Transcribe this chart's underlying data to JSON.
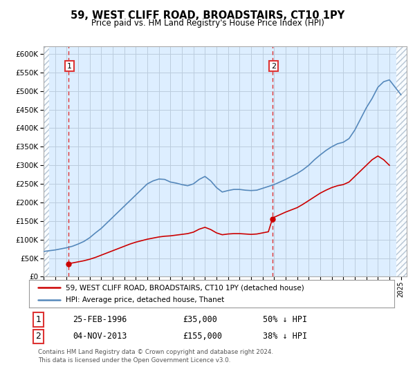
{
  "title": "59, WEST CLIFF ROAD, BROADSTAIRS, CT10 1PY",
  "subtitle": "Price paid vs. HM Land Registry's House Price Index (HPI)",
  "legend_line1": "59, WEST CLIFF ROAD, BROADSTAIRS, CT10 1PY (detached house)",
  "legend_line2": "HPI: Average price, detached house, Thanet",
  "footnote1": "Contains HM Land Registry data © Crown copyright and database right 2024.",
  "footnote2": "This data is licensed under the Open Government Licence v3.0.",
  "transaction1_date": "25-FEB-1996",
  "transaction1_price": "£35,000",
  "transaction1_hpi": "50% ↓ HPI",
  "transaction1_year": 1996.15,
  "transaction1_value": 35000,
  "transaction2_date": "04-NOV-2013",
  "transaction2_price": "£155,000",
  "transaction2_hpi": "38% ↓ HPI",
  "transaction2_year": 2013.84,
  "transaction2_value": 155000,
  "ylim": [
    0,
    620000
  ],
  "xlim_start": 1994.0,
  "xlim_end": 2025.5,
  "hpi_color": "#5588bb",
  "price_color": "#cc0000",
  "bg_color": "#ddeeff",
  "grid_color": "#bbccdd",
  "dashed_line_color": "#dd3333",
  "years_hpi": [
    1994.0,
    1994.5,
    1995.0,
    1995.5,
    1996.0,
    1996.5,
    1997.0,
    1997.5,
    1998.0,
    1998.5,
    1999.0,
    1999.5,
    2000.0,
    2000.5,
    2001.0,
    2001.5,
    2002.0,
    2002.5,
    2003.0,
    2003.5,
    2004.0,
    2004.5,
    2005.0,
    2005.5,
    2006.0,
    2006.5,
    2007.0,
    2007.5,
    2008.0,
    2008.5,
    2009.0,
    2009.5,
    2010.0,
    2010.5,
    2011.0,
    2011.5,
    2012.0,
    2012.5,
    2013.0,
    2013.5,
    2014.0,
    2014.5,
    2015.0,
    2015.5,
    2016.0,
    2016.5,
    2017.0,
    2017.5,
    2018.0,
    2018.5,
    2019.0,
    2019.5,
    2020.0,
    2020.5,
    2021.0,
    2021.5,
    2022.0,
    2022.5,
    2023.0,
    2023.5,
    2024.0,
    2024.5,
    2025.0
  ],
  "values_hpi": [
    68000,
    70000,
    72000,
    75000,
    78000,
    82000,
    88000,
    95000,
    105000,
    118000,
    130000,
    145000,
    160000,
    175000,
    190000,
    205000,
    220000,
    235000,
    250000,
    258000,
    263000,
    262000,
    255000,
    252000,
    248000,
    245000,
    250000,
    262000,
    270000,
    258000,
    240000,
    228000,
    232000,
    235000,
    235000,
    233000,
    232000,
    233000,
    238000,
    243000,
    248000,
    255000,
    262000,
    270000,
    278000,
    288000,
    300000,
    315000,
    328000,
    340000,
    350000,
    358000,
    362000,
    372000,
    395000,
    425000,
    455000,
    480000,
    510000,
    525000,
    530000,
    510000,
    490000
  ],
  "years_price": [
    1996.15,
    1996.5,
    1997.0,
    1997.5,
    1998.0,
    1998.5,
    1999.0,
    1999.5,
    2000.0,
    2000.5,
    2001.0,
    2001.5,
    2002.0,
    2002.5,
    2003.0,
    2003.5,
    2004.0,
    2004.5,
    2005.0,
    2005.5,
    2006.0,
    2006.5,
    2007.0,
    2007.5,
    2008.0,
    2008.5,
    2009.0,
    2009.5,
    2010.0,
    2010.5,
    2011.0,
    2011.5,
    2012.0,
    2012.5,
    2013.0,
    2013.5,
    2013.84,
    2014.0,
    2014.5,
    2015.0,
    2015.5,
    2016.0,
    2016.5,
    2017.0,
    2017.5,
    2018.0,
    2018.5,
    2019.0,
    2019.5,
    2020.0,
    2020.5,
    2021.0,
    2021.5,
    2022.0,
    2022.5,
    2023.0,
    2023.5,
    2024.0
  ],
  "values_price": [
    35000,
    37000,
    40000,
    43000,
    47000,
    52000,
    58000,
    64000,
    70000,
    76000,
    82000,
    88000,
    93000,
    97000,
    101000,
    104000,
    107000,
    109000,
    110000,
    112000,
    114000,
    116000,
    120000,
    128000,
    133000,
    127000,
    118000,
    113000,
    115000,
    116000,
    116000,
    115000,
    114000,
    115000,
    118000,
    121000,
    155000,
    160000,
    167000,
    174000,
    180000,
    186000,
    195000,
    205000,
    215000,
    225000,
    233000,
    240000,
    245000,
    248000,
    255000,
    270000,
    285000,
    300000,
    315000,
    325000,
    315000,
    300000
  ]
}
